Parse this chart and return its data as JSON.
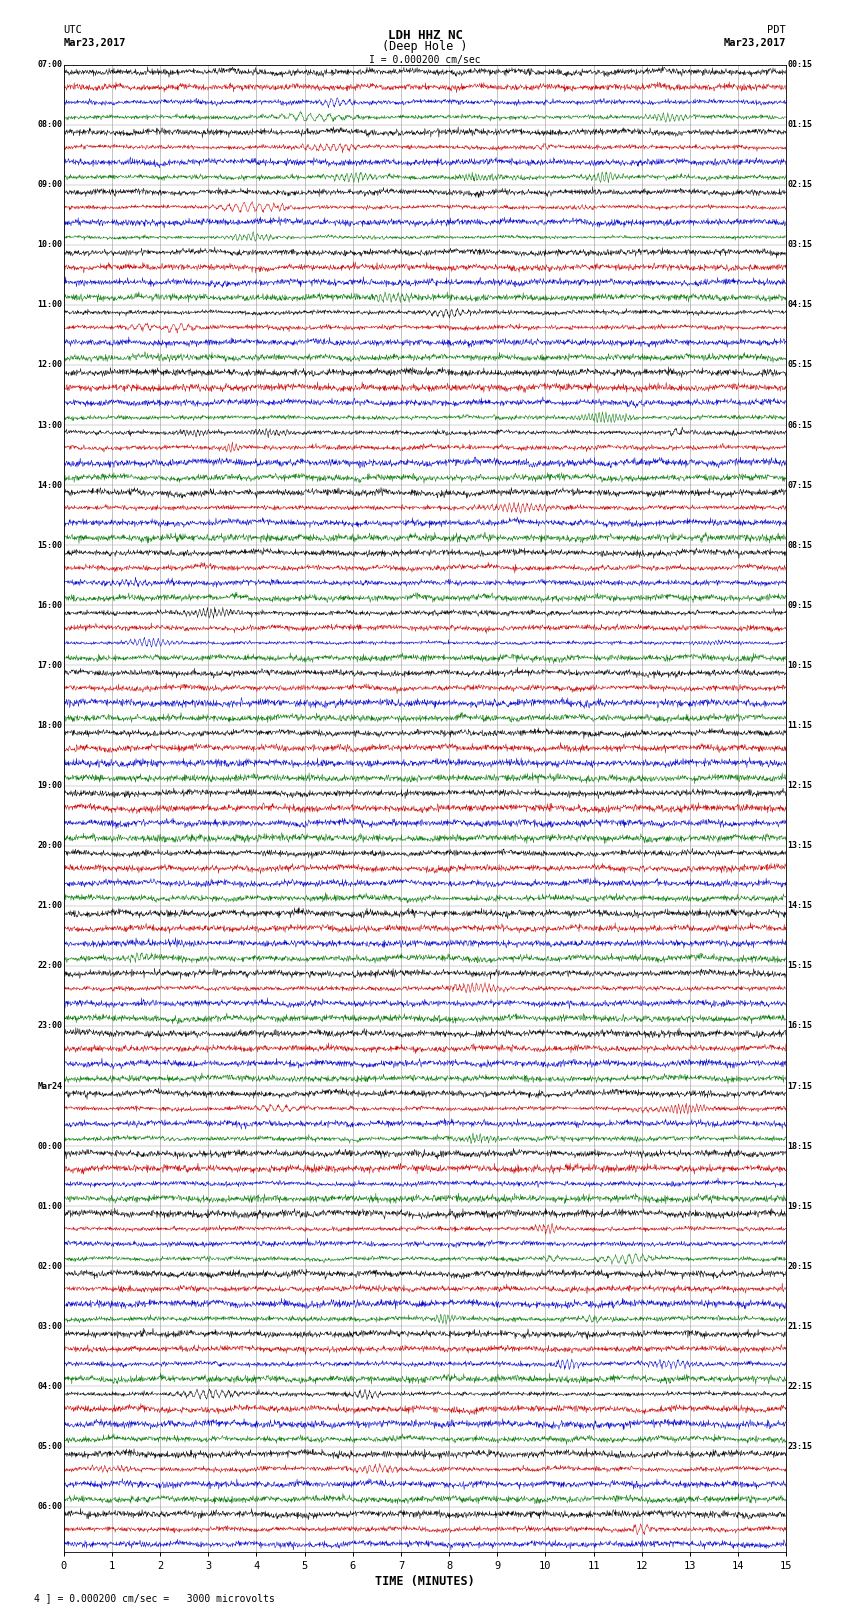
{
  "title_line1": "LDH HHZ NC",
  "title_line2": "(Deep Hole )",
  "scale_bar": "I = 0.000200 cm/sec",
  "left_header_line1": "UTC",
  "left_header_line2": "Mar23,2017",
  "right_header_line1": "PDT",
  "right_header_line2": "Mar23,2017",
  "bottom_label": "TIME (MINUTES)",
  "bottom_annotation": "4 ] = 0.000200 cm/sec =   3000 microvolts",
  "x_min": 0,
  "x_max": 15,
  "x_ticks": [
    0,
    1,
    2,
    3,
    4,
    5,
    6,
    7,
    8,
    9,
    10,
    11,
    12,
    13,
    14,
    15
  ],
  "trace_colors_hex": [
    "#000000",
    "#cc0000",
    "#0000cc",
    "#007700"
  ],
  "background_color": "#ffffff",
  "grid_color": "#888888",
  "left_times_utc": [
    "07:00",
    "",
    "",
    "",
    "08:00",
    "",
    "",
    "",
    "09:00",
    "",
    "",
    "",
    "10:00",
    "",
    "",
    "",
    "11:00",
    "",
    "",
    "",
    "12:00",
    "",
    "",
    "",
    "13:00",
    "",
    "",
    "",
    "14:00",
    "",
    "",
    "",
    "15:00",
    "",
    "",
    "",
    "16:00",
    "",
    "",
    "",
    "17:00",
    "",
    "",
    "",
    "18:00",
    "",
    "",
    "",
    "19:00",
    "",
    "",
    "",
    "20:00",
    "",
    "",
    "",
    "21:00",
    "",
    "",
    "",
    "22:00",
    "",
    "",
    "",
    "23:00",
    "",
    "",
    "",
    "Mar24",
    "",
    "",
    "",
    "00:00",
    "",
    "",
    "",
    "01:00",
    "",
    "",
    "",
    "02:00",
    "",
    "",
    "",
    "03:00",
    "",
    "",
    "",
    "04:00",
    "",
    "",
    "",
    "05:00",
    "",
    "",
    "",
    "06:00",
    "",
    ""
  ],
  "right_times_pdt": [
    "00:15",
    "",
    "",
    "",
    "01:15",
    "",
    "",
    "",
    "02:15",
    "",
    "",
    "",
    "03:15",
    "",
    "",
    "",
    "04:15",
    "",
    "",
    "",
    "05:15",
    "",
    "",
    "",
    "06:15",
    "",
    "",
    "",
    "07:15",
    "",
    "",
    "",
    "08:15",
    "",
    "",
    "",
    "09:15",
    "",
    "",
    "",
    "10:15",
    "",
    "",
    "",
    "11:15",
    "",
    "",
    "",
    "12:15",
    "",
    "",
    "",
    "13:15",
    "",
    "",
    "",
    "14:15",
    "",
    "",
    "",
    "15:15",
    "",
    "",
    "",
    "16:15",
    "",
    "",
    "",
    "17:15",
    "",
    "",
    "",
    "18:15",
    "",
    "",
    "",
    "19:15",
    "",
    "",
    "",
    "20:15",
    "",
    "",
    "",
    "21:15",
    "",
    "",
    "",
    "22:15",
    "",
    "",
    "",
    "23:15",
    "",
    ""
  ],
  "seed": 42
}
